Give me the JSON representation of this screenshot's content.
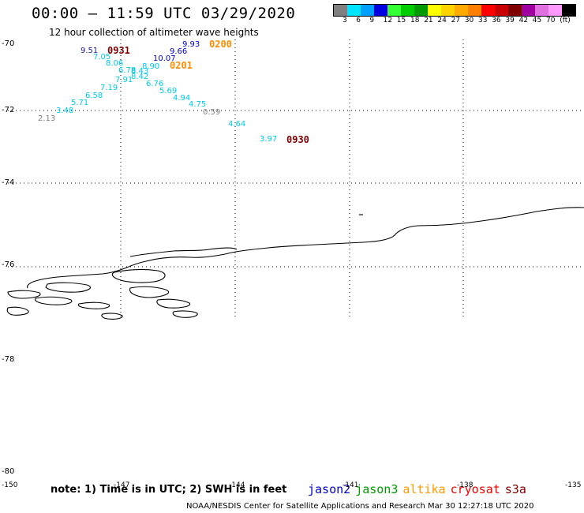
{
  "header": {
    "title": "00:00 – 11:59 UTC 03/29/2020",
    "subtitle": "12 hour collection of altimeter wave heights"
  },
  "colorbar": {
    "colors": [
      "#808080",
      "#00e5ff",
      "#00a0ff",
      "#0000e0",
      "#33ff33",
      "#00cc00",
      "#009900",
      "#ffff00",
      "#ffd200",
      "#ffaa00",
      "#ff8000",
      "#ff0000",
      "#c80000",
      "#800000",
      "#a000a0",
      "#e070e0",
      "#ff99ff",
      "#000000"
    ],
    "labels": [
      "3",
      "6",
      "9",
      "12",
      "15",
      "18",
      "21",
      "24",
      "27",
      "30",
      "33",
      "36",
      "39",
      "42",
      "45",
      "70",
      "(ft)"
    ]
  },
  "lat_labels": [
    "-70",
    "-72",
    "-74",
    "-76",
    "-78",
    "-80"
  ],
  "lon_labels": [
    "-150",
    "-147",
    "-144",
    "-141",
    "-138",
    "-135"
  ],
  "swh_points": [
    {
      "text": "9.51",
      "color": "#1a1a8c"
    },
    {
      "text": "7.05",
      "color": "#00c8e6"
    },
    {
      "text": "8.06",
      "color": "#00c8e6"
    },
    {
      "text": "6.78",
      "color": "#00c8e6"
    },
    {
      "text": "8.43",
      "color": "#00c8e6"
    },
    {
      "text": "8.90",
      "color": "#00c8e6"
    },
    {
      "text": "7.91",
      "color": "#00c8e6"
    },
    {
      "text": "8.42",
      "color": "#00c8e6"
    },
    {
      "text": "7.19",
      "color": "#00c8e6"
    },
    {
      "text": "6.76",
      "color": "#00c8e6"
    },
    {
      "text": "6.58",
      "color": "#00c8e6"
    },
    {
      "text": "5.69",
      "color": "#00c8e6"
    },
    {
      "text": "5.71",
      "color": "#00c8e6"
    },
    {
      "text": "4.94",
      "color": "#00c8e6"
    },
    {
      "text": "3.48",
      "color": "#00c8e6"
    },
    {
      "text": "4.75",
      "color": "#00c8e6"
    },
    {
      "text": "2.13",
      "color": "#808080"
    },
    {
      "text": "0.59",
      "color": "#808080"
    },
    {
      "text": "4.64",
      "color": "#00c8e6"
    },
    {
      "text": "3.97",
      "color": "#00c8e6"
    },
    {
      "text": "9.93",
      "color": "#0000d0"
    },
    {
      "text": "9.66",
      "color": "#0000d0"
    },
    {
      "text": "10.07",
      "color": "#0000d0"
    }
  ],
  "pass_times": [
    {
      "text": "0931",
      "color": "#800000"
    },
    {
      "text": "0200",
      "color": "#ff8c00"
    },
    {
      "text": "0201",
      "color": "#ff8c00"
    },
    {
      "text": "0930",
      "color": "#800000"
    }
  ],
  "note": "note: 1) Time is in UTC; 2) SWH is in feet",
  "legend": [
    {
      "name": "jason2",
      "color": "#0000cc"
    },
    {
      "name": "jason3",
      "color": "#009900"
    },
    {
      "name": "altika",
      "color": "#ff9900"
    },
    {
      "name": "cryosat",
      "color": "#ee0000"
    },
    {
      "name": "s3a",
      "color": "#800000"
    }
  ],
  "footer": "NOAA/NESDIS Center for Satellite Applications and Research    Mar 30 12:27:18 UTC 2020"
}
